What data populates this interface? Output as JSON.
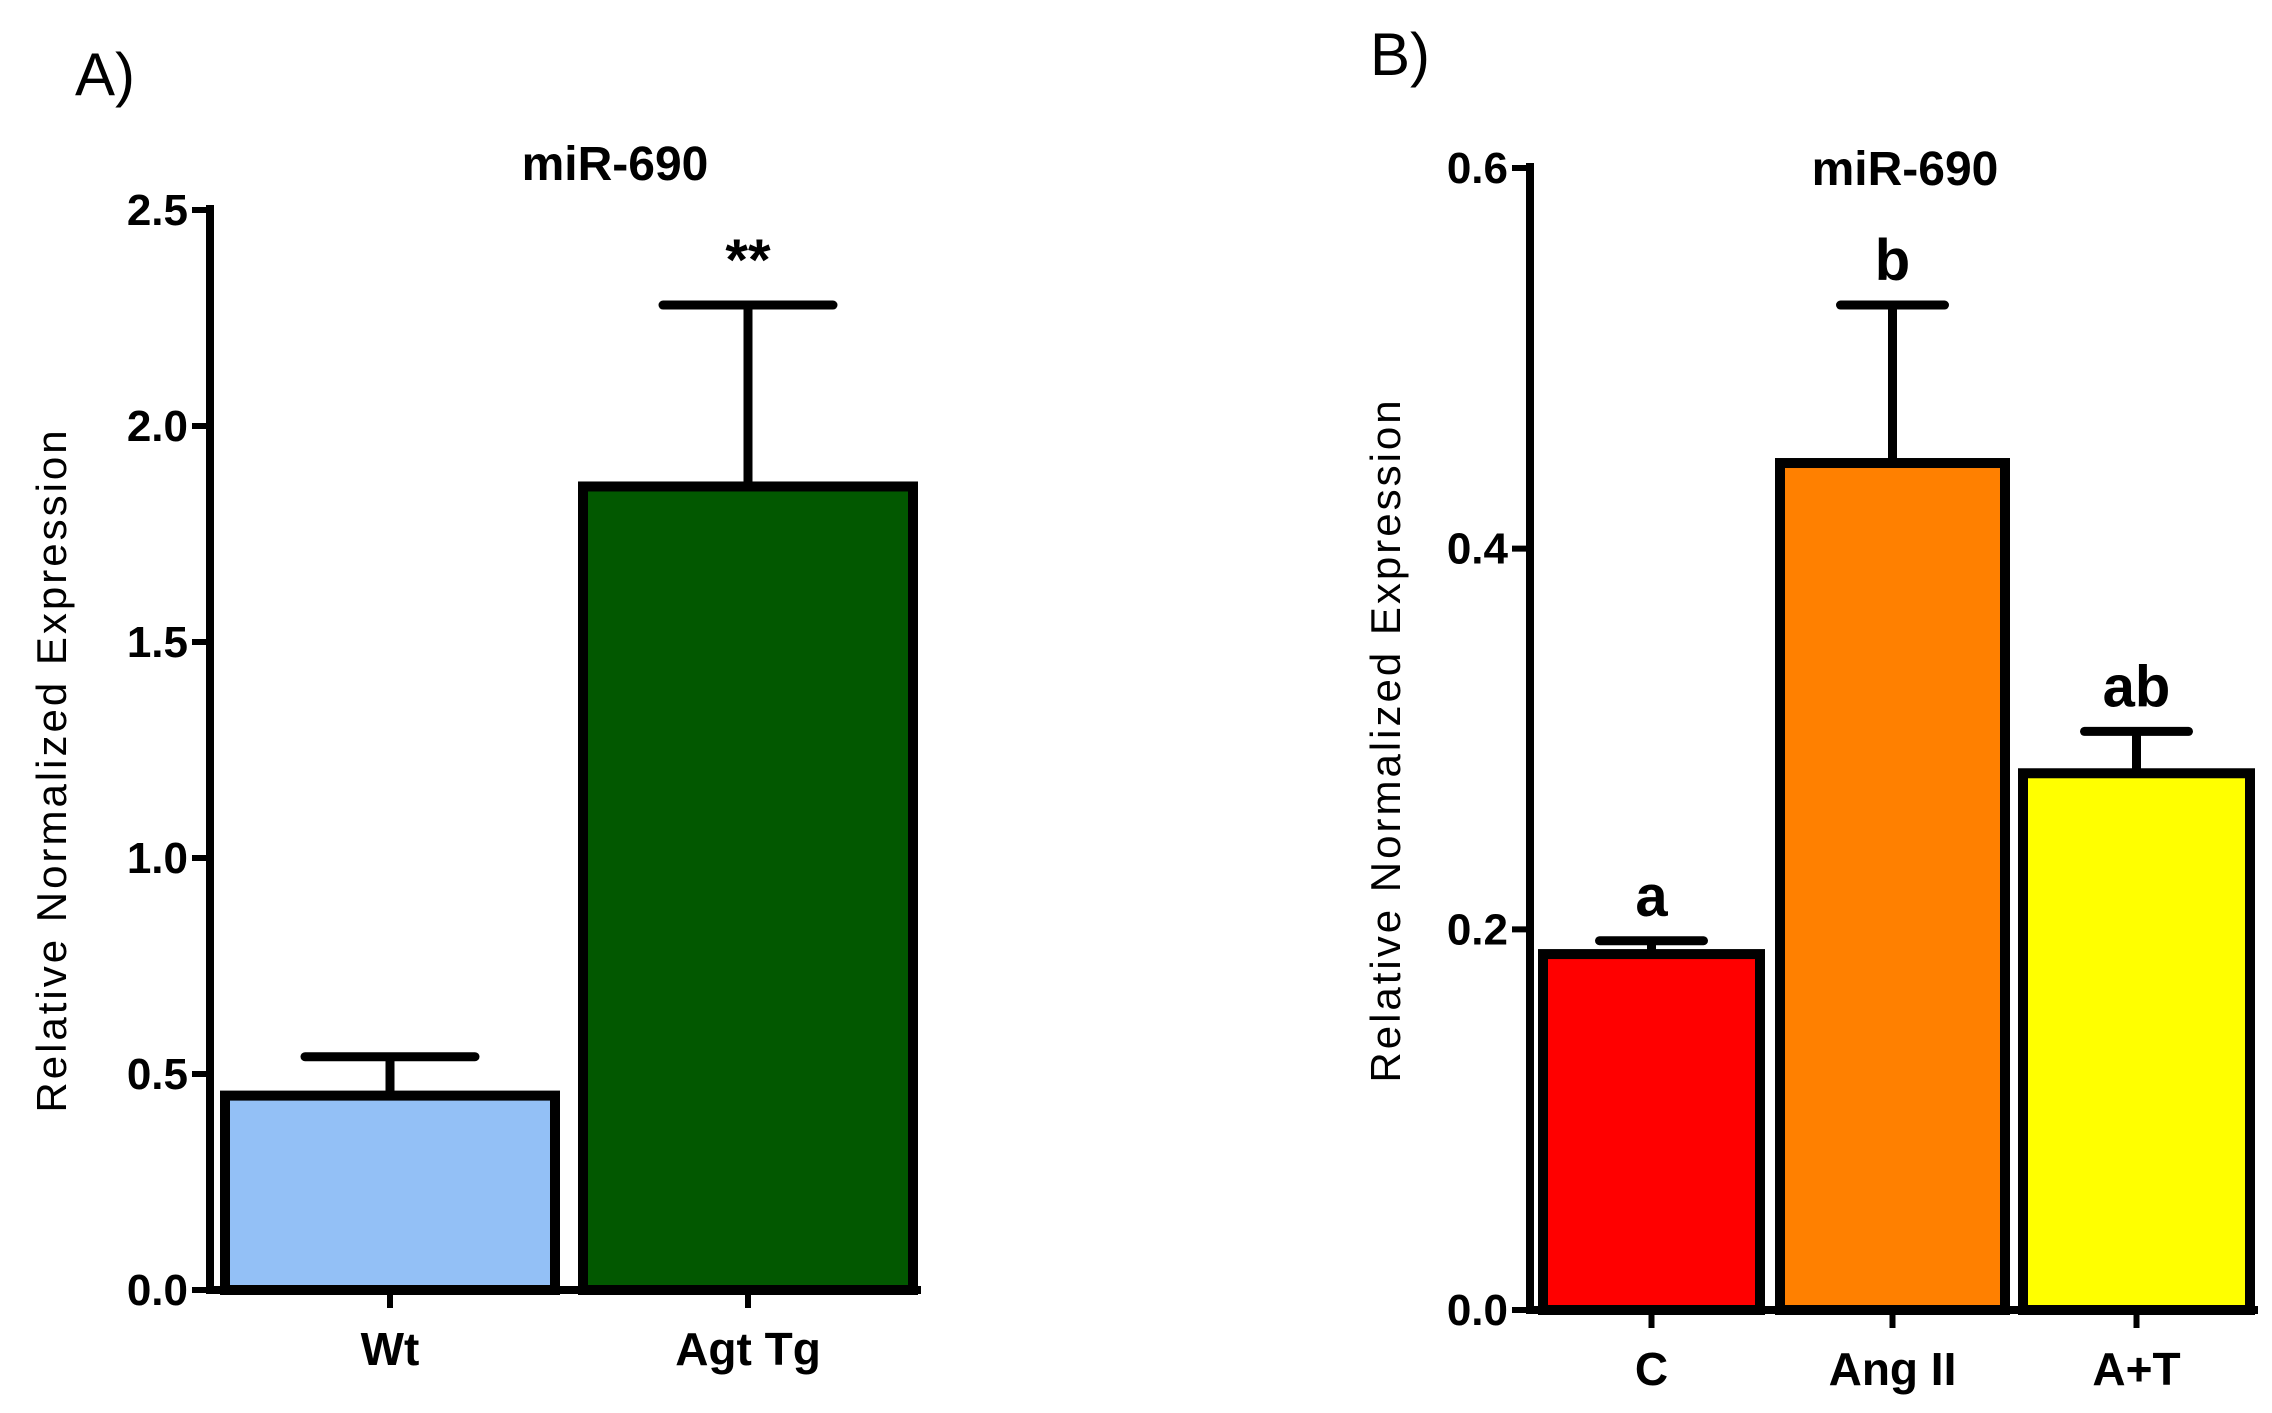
{
  "chart_data": [
    {
      "type": "bar",
      "panel_label": "A)",
      "title": "miR-690",
      "xlabel": "",
      "ylabel": "Relative Normalized Expression",
      "ylim": [
        0,
        2.5
      ],
      "yticks": [
        "0.0",
        "0.5",
        "1.0",
        "1.5",
        "2.0",
        "2.5"
      ],
      "categories": [
        "Wt",
        "Agt Tg"
      ],
      "values": [
        0.45,
        1.86
      ],
      "errors": [
        0.09,
        0.42
      ],
      "colors": [
        "#93c0f6",
        "#025800"
      ],
      "annotations": [
        "",
        "**"
      ],
      "grid": false
    },
    {
      "type": "bar",
      "panel_label": "B)",
      "title": "miR-690",
      "xlabel": "",
      "ylabel": "Relative Normalized Expression",
      "ylim": [
        0,
        0.6
      ],
      "yticks": [
        "0.0",
        "0.2",
        "0.4",
        "0.6"
      ],
      "categories": [
        "C",
        "Ang II",
        "A+T"
      ],
      "values": [
        0.187,
        0.445,
        0.282
      ],
      "errors": [
        0.007,
        0.083,
        0.022
      ],
      "colors": [
        "#ff0000",
        "#ff8000",
        "#ffff00"
      ],
      "annotations": [
        "a",
        "b",
        "ab"
      ],
      "grid": false
    }
  ]
}
